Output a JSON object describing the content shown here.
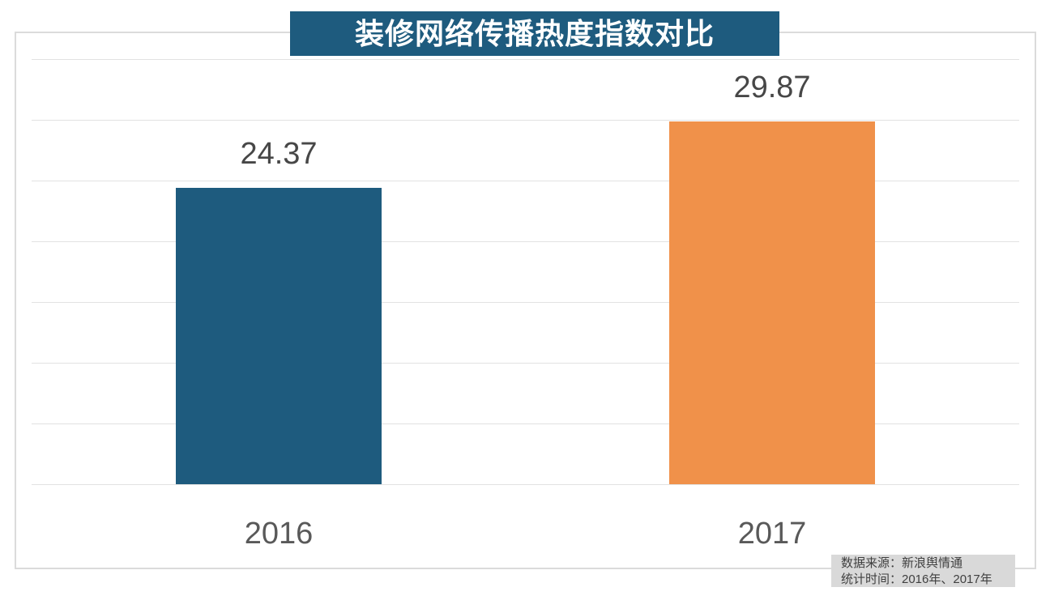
{
  "title": "装修网络传播热度指数对比",
  "colors": {
    "title_bg": "#1e5b7e",
    "title_text": "#ffffff",
    "gridline": "#e2e2e2",
    "frame_border": "#dbdbdb",
    "value_label_text": "#474747",
    "axis_label_text": "#595959",
    "source_bg": "#d9d9d9",
    "source_text": "#404040"
  },
  "chart_data": {
    "type": "bar",
    "title": "装修网络传播热度指数对比",
    "categories": [
      "2016",
      "2017"
    ],
    "values": [
      24.37,
      29.87
    ],
    "value_labels": [
      "24.37",
      "29.87"
    ],
    "bar_colors": [
      "#1e5b7e",
      "#f0914a"
    ],
    "xlabel": "",
    "ylabel": "",
    "ylim": [
      0,
      35
    ],
    "gridline_step": 5,
    "grid": true,
    "legend": "none"
  },
  "source_box": {
    "line1": "数据来源：新浪舆情通",
    "line2": "统计时间：2016年、2017年"
  }
}
